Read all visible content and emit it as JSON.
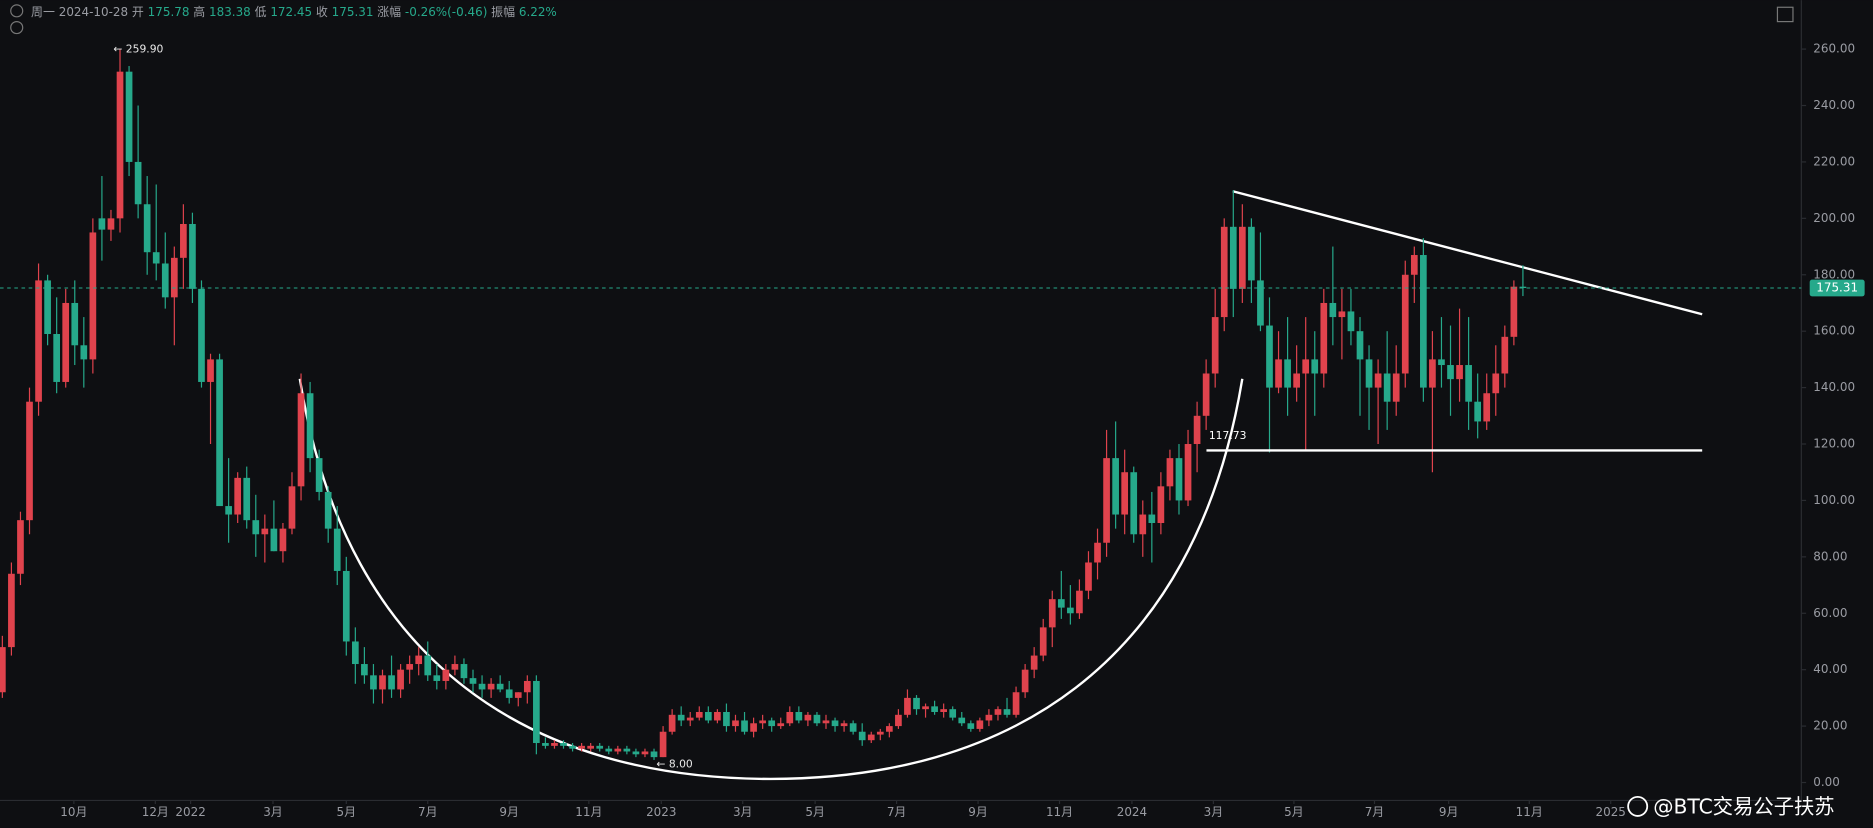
{
  "header": {
    "day": "周一",
    "date": "2024-10-28",
    "fields": [
      {
        "label": "开",
        "value": 175.78
      },
      {
        "label": "高",
        "value": 183.38
      },
      {
        "label": "低",
        "value": 172.45
      },
      {
        "label": "收",
        "value": 175.31
      },
      {
        "label": "涨幅",
        "value": "-0.26%(-0.46)"
      },
      {
        "label": "振幅",
        "value": "6.22%"
      }
    ]
  },
  "watermark": "@BTC交易公子扶苏",
  "chart_data": {
    "type": "candlestick",
    "up_color": "#e0434d",
    "down_color": "#26a98b",
    "xlim": [
      -0.26,
      198.76
    ],
    "ylim": [
      -6.35,
      277.37
    ],
    "yticks": [
      {
        "value": 0,
        "label": "0.00"
      },
      {
        "value": 20,
        "label": "20.00"
      },
      {
        "value": 40,
        "label": "40.00"
      },
      {
        "value": 60,
        "label": "60.00"
      },
      {
        "value": 80,
        "label": "80.00"
      },
      {
        "value": 100,
        "label": "100.00"
      },
      {
        "value": 120,
        "label": "120.00"
      },
      {
        "value": 140,
        "label": "140.00"
      },
      {
        "value": 160,
        "label": "160.00"
      },
      {
        "value": 180,
        "label": "180.00"
      },
      {
        "value": 200,
        "label": "200.00"
      },
      {
        "value": 220,
        "label": "220.00"
      },
      {
        "value": 240,
        "label": "240.00"
      },
      {
        "value": 260,
        "label": "260.00"
      }
    ],
    "xticks": [
      {
        "value": 7.9,
        "label": "10月"
      },
      {
        "value": 16.9,
        "label": "12月"
      },
      {
        "value": 20.8,
        "label": "2022"
      },
      {
        "value": 29.9,
        "label": "3月"
      },
      {
        "value": 38,
        "label": "5月"
      },
      {
        "value": 47,
        "label": "7月"
      },
      {
        "value": 56,
        "label": "9月"
      },
      {
        "value": 64.8,
        "label": "11月"
      },
      {
        "value": 72.8,
        "label": "2023"
      },
      {
        "value": 81.8,
        "label": "3月"
      },
      {
        "value": 89.8,
        "label": "5月"
      },
      {
        "value": 98.8,
        "label": "7月"
      },
      {
        "value": 107.8,
        "label": "9月"
      },
      {
        "value": 116.8,
        "label": "11月"
      },
      {
        "value": 124.8,
        "label": "2024"
      },
      {
        "value": 133.8,
        "label": "3月"
      },
      {
        "value": 142.7,
        "label": "5月"
      },
      {
        "value": 151.6,
        "label": "7月"
      },
      {
        "value": 159.8,
        "label": "9月"
      },
      {
        "value": 168.7,
        "label": "11月"
      },
      {
        "value": 177.7,
        "label": "2025"
      }
    ],
    "annotations": [
      {
        "index": 12,
        "value": 259.9,
        "label": "← 259.90"
      },
      {
        "index": 72,
        "value": 8,
        "label": "← 8.00"
      }
    ],
    "support": {
      "value": 117.73,
      "label": "117.73"
    },
    "last_price": {
      "value": 175.31,
      "label": "175.31"
    },
    "ohlc": [
      [
        32,
        52,
        30,
        48
      ],
      [
        48,
        78,
        45,
        74
      ],
      [
        74,
        96,
        70,
        93
      ],
      [
        93,
        140,
        88,
        135
      ],
      [
        135,
        184,
        130,
        178
      ],
      [
        178,
        180,
        155,
        159
      ],
      [
        159,
        172,
        138,
        142
      ],
      [
        142,
        175,
        140,
        170
      ],
      [
        170,
        178,
        148,
        155
      ],
      [
        155,
        165,
        140,
        150
      ],
      [
        150,
        200,
        145,
        195
      ],
      [
        200,
        215,
        185,
        196
      ],
      [
        196,
        203,
        192,
        200
      ],
      [
        200,
        259.9,
        195,
        252
      ],
      [
        252,
        254,
        215,
        220
      ],
      [
        220,
        240,
        200,
        205
      ],
      [
        205,
        215,
        180,
        188
      ],
      [
        188,
        212,
        178,
        184
      ],
      [
        184,
        195,
        168,
        172
      ],
      [
        172,
        190,
        155,
        186
      ],
      [
        186,
        205,
        175,
        198
      ],
      [
        198,
        202,
        170,
        175
      ],
      [
        175,
        178,
        140,
        142
      ],
      [
        142,
        152,
        120,
        150
      ],
      [
        150,
        152,
        100,
        98
      ],
      [
        98,
        115,
        85,
        95
      ],
      [
        95,
        110,
        92,
        108
      ],
      [
        108,
        112,
        90,
        93
      ],
      [
        93,
        102,
        80,
        88
      ],
      [
        88,
        95,
        78,
        90
      ],
      [
        90,
        100,
        82,
        82
      ],
      [
        82,
        92,
        78,
        90
      ],
      [
        90,
        110,
        88,
        105
      ],
      [
        105,
        145,
        100,
        138
      ],
      [
        138,
        142,
        110,
        115
      ],
      [
        115,
        118,
        100,
        103
      ],
      [
        103,
        105,
        85,
        90
      ],
      [
        90,
        98,
        70,
        75
      ],
      [
        75,
        80,
        45,
        50
      ],
      [
        50,
        55,
        35,
        42
      ],
      [
        42,
        48,
        35,
        38
      ],
      [
        38,
        42,
        28,
        33
      ],
      [
        33,
        40,
        28,
        38
      ],
      [
        38,
        45,
        30,
        33
      ],
      [
        33,
        42,
        30,
        40
      ],
      [
        40,
        45,
        35,
        42
      ],
      [
        42,
        48,
        38,
        45
      ],
      [
        45,
        50,
        36,
        38
      ],
      [
        38,
        42,
        33,
        36
      ],
      [
        36,
        42,
        33,
        40
      ],
      [
        40,
        45,
        38,
        42
      ],
      [
        42,
        44,
        35,
        37
      ],
      [
        37,
        40,
        32,
        35
      ],
      [
        35,
        38,
        30,
        33
      ],
      [
        33,
        37,
        30,
        35
      ],
      [
        35,
        38,
        32,
        33
      ],
      [
        33,
        36,
        28,
        30
      ],
      [
        30,
        32,
        27,
        32
      ],
      [
        32,
        38,
        28,
        36
      ],
      [
        36,
        38,
        10,
        14
      ],
      [
        14,
        16,
        12,
        13
      ],
      [
        13,
        15,
        12,
        14
      ],
      [
        14,
        15,
        12,
        13
      ],
      [
        13,
        14,
        11,
        12
      ],
      [
        12,
        14,
        11,
        13
      ],
      [
        12,
        14,
        11,
        13
      ],
      [
        13,
        14,
        11,
        12
      ],
      [
        12,
        13,
        10,
        11
      ],
      [
        11,
        13,
        10,
        12
      ],
      [
        12,
        13,
        10,
        11
      ],
      [
        11,
        12,
        9,
        10
      ],
      [
        10,
        12,
        9,
        11
      ],
      [
        11,
        12,
        8,
        9
      ],
      [
        9,
        20,
        9,
        18
      ],
      [
        18,
        26,
        17,
        24
      ],
      [
        24,
        27,
        20,
        22
      ],
      [
        22,
        25,
        20,
        23
      ],
      [
        23,
        27,
        22,
        25
      ],
      [
        25,
        27,
        21,
        22
      ],
      [
        22,
        26,
        21,
        25
      ],
      [
        25,
        28,
        18,
        20
      ],
      [
        20,
        24,
        18,
        22
      ],
      [
        22,
        25,
        17,
        18
      ],
      [
        18,
        23,
        16,
        21
      ],
      [
        21,
        24,
        19,
        22
      ],
      [
        22,
        23,
        18,
        20
      ],
      [
        20,
        23,
        19,
        21
      ],
      [
        21,
        27,
        20,
        25
      ],
      [
        25,
        27,
        21,
        22
      ],
      [
        22,
        25,
        20,
        24
      ],
      [
        24,
        25,
        20,
        21
      ],
      [
        21,
        24,
        19,
        22
      ],
      [
        22,
        23,
        18,
        20
      ],
      [
        20,
        22,
        18,
        21
      ],
      [
        21,
        22,
        17,
        18
      ],
      [
        18,
        21,
        13,
        15
      ],
      [
        15,
        18,
        14,
        17
      ],
      [
        17,
        19,
        15,
        18
      ],
      [
        18,
        21,
        16,
        20
      ],
      [
        20,
        26,
        19,
        24
      ],
      [
        24,
        33,
        23,
        30
      ],
      [
        30,
        31,
        24,
        26
      ],
      [
        26,
        28,
        23,
        27
      ],
      [
        27,
        29,
        24,
        25
      ],
      [
        25,
        28,
        23,
        26
      ],
      [
        26,
        27,
        22,
        23
      ],
      [
        23,
        25,
        20,
        21
      ],
      [
        21,
        22,
        18,
        19
      ],
      [
        19,
        23,
        18,
        22
      ],
      [
        22,
        26,
        20,
        24
      ],
      [
        24,
        27,
        22,
        26
      ],
      [
        26,
        30,
        23,
        24
      ],
      [
        24,
        34,
        23,
        32
      ],
      [
        32,
        42,
        30,
        40
      ],
      [
        40,
        48,
        37,
        45
      ],
      [
        45,
        58,
        43,
        55
      ],
      [
        55,
        68,
        48,
        65
      ],
      [
        65,
        75,
        58,
        62
      ],
      [
        62,
        70,
        56,
        60
      ],
      [
        60,
        72,
        58,
        68
      ],
      [
        68,
        82,
        65,
        78
      ],
      [
        78,
        90,
        72,
        85
      ],
      [
        85,
        125,
        80,
        115
      ],
      [
        115,
        128,
        90,
        95
      ],
      [
        95,
        118,
        88,
        110
      ],
      [
        110,
        112,
        85,
        88
      ],
      [
        88,
        100,
        80,
        95
      ],
      [
        95,
        103,
        78,
        92
      ],
      [
        92,
        110,
        88,
        105
      ],
      [
        105,
        118,
        100,
        115
      ],
      [
        115,
        120,
        95,
        100
      ],
      [
        100,
        125,
        98,
        120
      ],
      [
        120,
        135,
        110,
        130
      ],
      [
        130,
        150,
        125,
        145
      ],
      [
        145,
        175,
        140,
        165
      ],
      [
        165,
        200,
        160,
        197
      ],
      [
        197,
        210,
        165,
        175
      ],
      [
        175,
        205,
        170,
        197
      ],
      [
        197,
        200,
        170,
        178
      ],
      [
        178,
        195,
        160,
        162
      ],
      [
        162,
        172,
        117,
        140
      ],
      [
        140,
        160,
        138,
        150
      ],
      [
        150,
        165,
        130,
        140
      ],
      [
        140,
        155,
        135,
        145
      ],
      [
        145,
        165,
        118,
        150
      ],
      [
        150,
        160,
        130,
        145
      ],
      [
        145,
        175,
        140,
        170
      ],
      [
        170,
        190,
        155,
        165
      ],
      [
        165,
        175,
        150,
        167
      ],
      [
        167,
        175,
        155,
        160
      ],
      [
        160,
        165,
        130,
        150
      ],
      [
        150,
        155,
        125,
        140
      ],
      [
        140,
        150,
        120,
        145
      ],
      [
        145,
        160,
        125,
        135
      ],
      [
        135,
        155,
        130,
        145
      ],
      [
        145,
        185,
        140,
        180
      ],
      [
        180,
        190,
        170,
        187
      ],
      [
        187,
        193,
        135,
        140
      ],
      [
        140,
        160,
        110,
        150
      ],
      [
        150,
        165,
        140,
        148
      ],
      [
        148,
        162,
        130,
        143
      ],
      [
        143,
        168,
        135,
        148
      ],
      [
        148,
        165,
        125,
        135
      ],
      [
        135,
        145,
        122,
        128
      ],
      [
        128,
        145,
        125,
        138
      ],
      [
        138,
        155,
        130,
        145
      ],
      [
        145,
        162,
        140,
        158
      ],
      [
        158,
        178,
        155,
        175.78
      ],
      [
        175.78,
        183.38,
        172.45,
        175.31
      ]
    ]
  }
}
